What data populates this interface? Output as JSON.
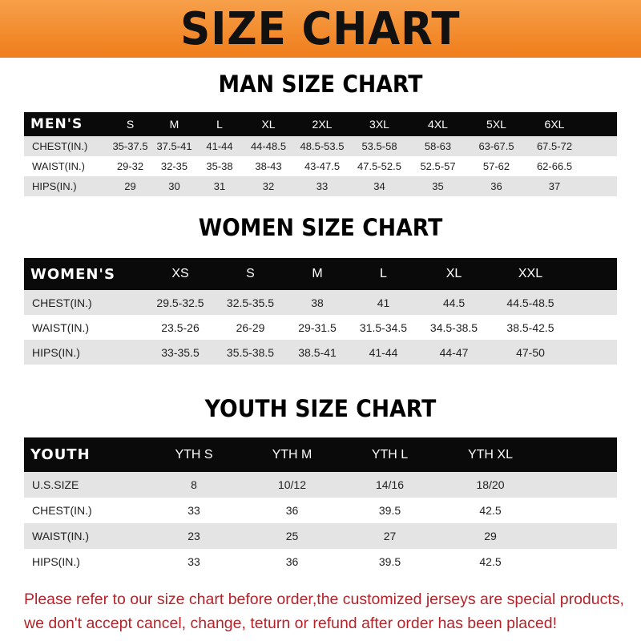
{
  "banner_title": "SIZE CHART",
  "colors": {
    "banner": "#ef7d1a",
    "header_row": "#0a0a0a",
    "stripe": "#e4e4e4",
    "note": "#b3242a"
  },
  "men": {
    "title": "MAN SIZE CHART",
    "header": [
      "MEN'S",
      "S",
      "M",
      "L",
      "XL",
      "2XL",
      "3XL",
      "4XL",
      "5XL",
      "6XL"
    ],
    "rows": [
      [
        "CHEST(IN.)",
        "35-37.5",
        "37.5-41",
        "41-44",
        "44-48.5",
        "48.5-53.5",
        "53.5-58",
        "58-63",
        "63-67.5",
        "67.5-72"
      ],
      [
        "WAIST(IN.)",
        "29-32",
        "32-35",
        "35-38",
        "38-43",
        "43-47.5",
        "47.5-52.5",
        "52.5-57",
        "57-62",
        "62-66.5"
      ],
      [
        "HIPS(IN.)",
        "29",
        "30",
        "31",
        "32",
        "33",
        "34",
        "35",
        "36",
        "37"
      ]
    ]
  },
  "women": {
    "title": "WOMEN SIZE CHART",
    "header": [
      "WOMEN'S",
      "XS",
      "S",
      "M",
      "L",
      "XL",
      "XXL"
    ],
    "rows": [
      [
        "CHEST(IN.)",
        "29.5-32.5",
        "32.5-35.5",
        "38",
        "41",
        "44.5",
        "44.5-48.5"
      ],
      [
        "WAIST(IN.)",
        "23.5-26",
        "26-29",
        "29-31.5",
        "31.5-34.5",
        "34.5-38.5",
        "38.5-42.5"
      ],
      [
        "HIPS(IN.)",
        "33-35.5",
        "35.5-38.5",
        "38.5-41",
        "41-44",
        "44-47",
        "47-50"
      ]
    ]
  },
  "youth": {
    "title": "YOUTH SIZE CHART",
    "header": [
      "YOUTH",
      "YTH S",
      "YTH M",
      "YTH L",
      "YTH XL"
    ],
    "rows": [
      [
        "U.S.SIZE",
        "8",
        "10/12",
        "14/16",
        "18/20"
      ],
      [
        "CHEST(IN.)",
        "33",
        "36",
        "39.5",
        "42.5"
      ],
      [
        "WAIST(IN.)",
        "23",
        "25",
        "27",
        "29"
      ],
      [
        "HIPS(IN.)",
        "33",
        "36",
        "39.5",
        "42.5"
      ]
    ]
  },
  "note": {
    "line1": "Please refer to our size chart before order,the customized jerseys are special products,",
    "line2": "we don't accept cancel, change, teturn or refund after order has been placed!"
  }
}
